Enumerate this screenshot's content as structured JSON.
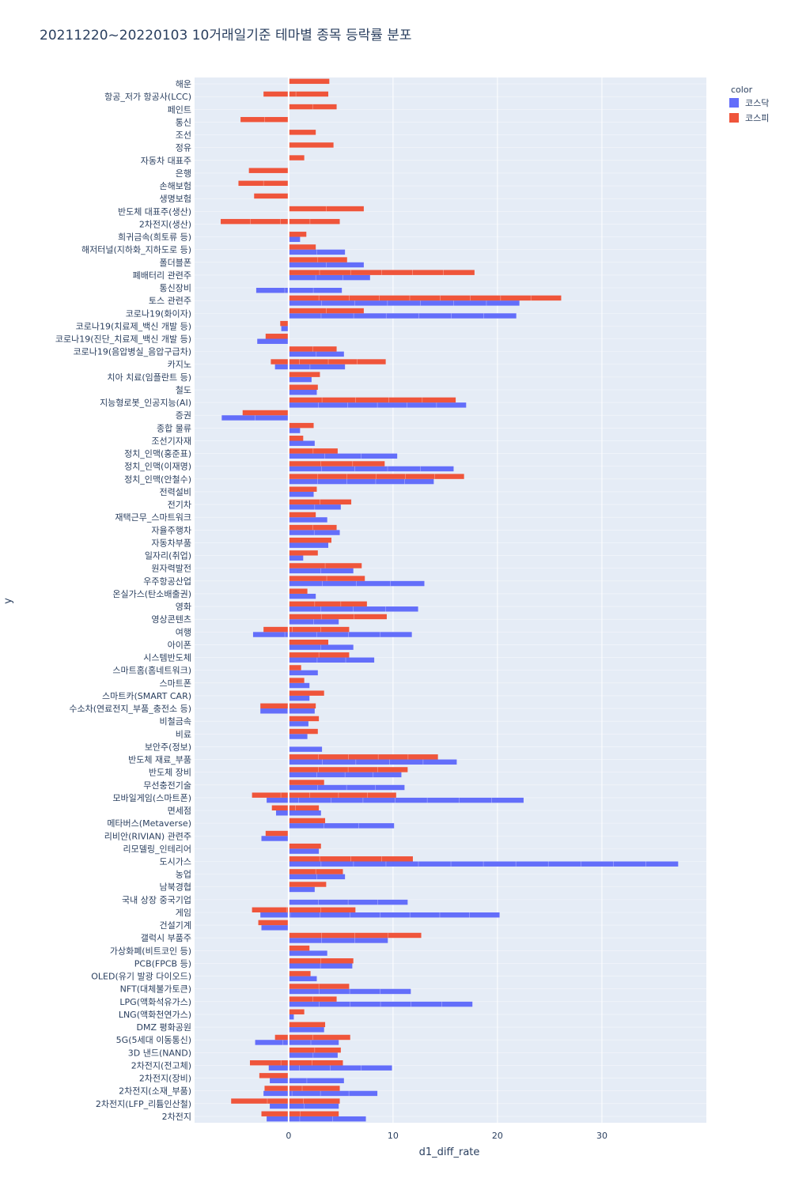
{
  "chart_data": {
    "type": "bar",
    "orientation": "horizontal",
    "title": "20211220~20220103 10거래일기준 테마별 종목 등락률 분포",
    "xlabel": "d1_diff_rate",
    "ylabel": "y",
    "xlim": [
      -9,
      40
    ],
    "xticks": [
      0,
      10,
      20,
      30
    ],
    "grid": true,
    "legend": {
      "title": "color",
      "position": "top-right"
    },
    "categories": [
      "해운",
      "항공_저가 항공사(LCC)",
      "페인트",
      "통신",
      "조선",
      "정유",
      "자동차 대표주",
      "은행",
      "손해보험",
      "생명보험",
      "반도체 대표주(생산)",
      "2차전지(생산)",
      "희귀금속(희토류 등)",
      "해저터널(지하화_지하도로 등)",
      "폴더블폰",
      "폐배터리 관련주",
      "통신장비",
      "토스 관련주",
      "코로나19(화이자)",
      "코로나19(치료제_백신 개발 등)",
      "코로나19(진단_치료제_백신 개발 등)",
      "코로나19(음압병실_음압구급차)",
      "카지노",
      "치아 치료(임플란트 등)",
      "철도",
      "지능형로봇_인공지능(AI)",
      "증권",
      "종합 물류",
      "조선기자재",
      "정치_인맥(홍준표)",
      "정치_인맥(이재명)",
      "정치_인맥(안철수)",
      "전력설비",
      "전기차",
      "재택근무_스마트워크",
      "자율주행차",
      "자동차부품",
      "일자리(취업)",
      "원자력발전",
      "우주항공산업",
      "온실가스(탄소배출권)",
      "영화",
      "영상콘텐츠",
      "여행",
      "아이폰",
      "시스템반도체",
      "스마트홈(홈네트워크)",
      "스마트폰",
      "스마트카(SMART CAR)",
      "수소차(연료전지_부품_충전소 등)",
      "비철금속",
      "비료",
      "보안주(정보)",
      "반도체 재료_부품",
      "반도체 장비",
      "무선충전기술",
      "모바일게임(스마트폰)",
      "면세점",
      "메타버스(Metaverse)",
      "리비안(RIVIAN) 관련주",
      "리모델링_인테리어",
      "도시가스",
      "농업",
      "남북경협",
      "국내 상장 중국기업",
      "게임",
      "건설기계",
      "갤럭시 부품주",
      "가상화폐(비트코인 등)",
      "PCB(FPCB 등)",
      "OLED(유기 발광 다이오드)",
      "NFT(대체불가토큰)",
      "LPG(액화석유가스)",
      "LNG(액화천연가스)",
      "DMZ 평화공원",
      "5G(5세대 이동통신)",
      "3D 낸드(NAND)",
      "2차전지(전고체)",
      "2차전지(장비)",
      "2차전지(소재_부품)",
      "2차전지(LFP_리튬인산철)",
      "2차전지"
    ],
    "series": [
      {
        "name": "코스닥",
        "color": "#636efa",
        "ranges": [
          [
            0,
            0
          ],
          [
            0,
            0
          ],
          [
            0,
            0
          ],
          [
            0,
            0
          ],
          [
            0,
            0
          ],
          [
            0,
            0
          ],
          [
            0,
            0
          ],
          [
            0,
            0
          ],
          [
            0,
            0
          ],
          [
            0,
            0
          ],
          [
            0,
            0
          ],
          [
            0,
            0
          ],
          [
            0,
            1.1
          ],
          [
            0,
            5.4
          ],
          [
            0,
            7.2
          ],
          [
            0,
            7.8
          ],
          [
            -3.1,
            5.1
          ],
          [
            0,
            22.1
          ],
          [
            0,
            21.8
          ],
          [
            -0.7,
            0
          ],
          [
            -3.0,
            0
          ],
          [
            0,
            5.3
          ],
          [
            -1.3,
            5.4
          ],
          [
            0,
            2.2
          ],
          [
            0,
            2.7
          ],
          [
            0,
            17.0
          ],
          [
            -6.4,
            0
          ],
          [
            0,
            1.1
          ],
          [
            0,
            2.5
          ],
          [
            0,
            10.4
          ],
          [
            0,
            15.8
          ],
          [
            0,
            13.9
          ],
          [
            0,
            2.4
          ],
          [
            0,
            5.0
          ],
          [
            0,
            3.7
          ],
          [
            0,
            4.9
          ],
          [
            0,
            3.8
          ],
          [
            0,
            1.4
          ],
          [
            0,
            6.2
          ],
          [
            0,
            13.0
          ],
          [
            0,
            2.6
          ],
          [
            0,
            12.4
          ],
          [
            0,
            4.8
          ],
          [
            -3.4,
            11.8
          ],
          [
            0,
            6.2
          ],
          [
            0,
            8.2
          ],
          [
            0,
            2.8
          ],
          [
            0,
            2.0
          ],
          [
            0,
            2.0
          ],
          [
            -2.7,
            2.5
          ],
          [
            0,
            1.9
          ],
          [
            0,
            1.8
          ],
          [
            0,
            3.2
          ],
          [
            0,
            16.1
          ],
          [
            0,
            10.8
          ],
          [
            0,
            11.1
          ],
          [
            -2.1,
            22.5
          ],
          [
            -1.2,
            3.1
          ],
          [
            0,
            10.1
          ],
          [
            -2.6,
            0
          ],
          [
            0,
            2.9
          ],
          [
            0,
            37.3
          ],
          [
            0,
            5.4
          ],
          [
            0,
            2.5
          ],
          [
            0,
            11.4
          ],
          [
            -2.7,
            20.2
          ],
          [
            -2.6,
            0
          ],
          [
            0,
            9.5
          ],
          [
            0,
            3.7
          ],
          [
            0,
            6.1
          ],
          [
            0,
            2.7
          ],
          [
            0,
            11.7
          ],
          [
            0,
            17.6
          ],
          [
            0,
            0.5
          ],
          [
            0,
            3.4
          ],
          [
            -3.2,
            4.8
          ],
          [
            0,
            4.7
          ],
          [
            -1.9,
            9.9
          ],
          [
            -1.8,
            5.3
          ],
          [
            -2.4,
            8.5
          ],
          [
            -1.8,
            4.8
          ],
          [
            -2.1,
            7.4
          ]
        ]
      },
      {
        "name": "코스피",
        "color": "#ef553b",
        "ranges": [
          [
            0,
            3.9
          ],
          [
            -2.4,
            3.8
          ],
          [
            0,
            4.6
          ],
          [
            -4.6,
            0
          ],
          [
            0,
            2.6
          ],
          [
            0,
            4.3
          ],
          [
            0,
            1.5
          ],
          [
            -3.8,
            0
          ],
          [
            -4.8,
            0
          ],
          [
            -3.3,
            0
          ],
          [
            0,
            7.2
          ],
          [
            -6.5,
            4.9
          ],
          [
            0,
            1.7
          ],
          [
            0,
            2.6
          ],
          [
            0,
            5.6
          ],
          [
            0,
            17.8
          ],
          [
            0,
            0
          ],
          [
            0,
            26.1
          ],
          [
            0,
            7.2
          ],
          [
            -0.8,
            0
          ],
          [
            -2.2,
            0
          ],
          [
            0,
            4.6
          ],
          [
            -1.7,
            9.3
          ],
          [
            0,
            3.0
          ],
          [
            0,
            2.8
          ],
          [
            0,
            16.0
          ],
          [
            -4.4,
            0
          ],
          [
            0,
            2.4
          ],
          [
            0,
            1.4
          ],
          [
            0,
            4.7
          ],
          [
            0,
            9.2
          ],
          [
            0,
            16.8
          ],
          [
            0,
            2.7
          ],
          [
            0,
            6.0
          ],
          [
            0,
            2.6
          ],
          [
            0,
            4.6
          ],
          [
            0,
            4.1
          ],
          [
            0,
            2.8
          ],
          [
            0,
            7.0
          ],
          [
            0,
            7.3
          ],
          [
            0,
            1.8
          ],
          [
            0,
            7.5
          ],
          [
            0,
            9.4
          ],
          [
            -2.4,
            5.8
          ],
          [
            0,
            3.8
          ],
          [
            0,
            5.8
          ],
          [
            0,
            1.2
          ],
          [
            0,
            1.5
          ],
          [
            0,
            3.4
          ],
          [
            -2.7,
            2.6
          ],
          [
            0,
            2.9
          ],
          [
            0,
            2.8
          ],
          [
            0,
            0
          ],
          [
            0,
            14.3
          ],
          [
            0,
            11.4
          ],
          [
            0,
            3.4
          ],
          [
            -3.5,
            10.3
          ],
          [
            -1.6,
            2.9
          ],
          [
            0,
            3.5
          ],
          [
            -2.2,
            0
          ],
          [
            0,
            3.1
          ],
          [
            0,
            11.9
          ],
          [
            0,
            5.2
          ],
          [
            0,
            3.6
          ],
          [
            0,
            0
          ],
          [
            -3.5,
            6.4
          ],
          [
            -2.9,
            0
          ],
          [
            0,
            12.7
          ],
          [
            0,
            2.0
          ],
          [
            0,
            6.2
          ],
          [
            0,
            2.1
          ],
          [
            0,
            5.8
          ],
          [
            0,
            4.6
          ],
          [
            0,
            1.5
          ],
          [
            0,
            3.5
          ],
          [
            -1.3,
            5.9
          ],
          [
            0,
            5.0
          ],
          [
            -3.7,
            5.2
          ],
          [
            -2.8,
            0
          ],
          [
            -2.3,
            4.9
          ],
          [
            -5.5,
            4.9
          ],
          [
            -2.6,
            4.8
          ]
        ]
      }
    ]
  }
}
